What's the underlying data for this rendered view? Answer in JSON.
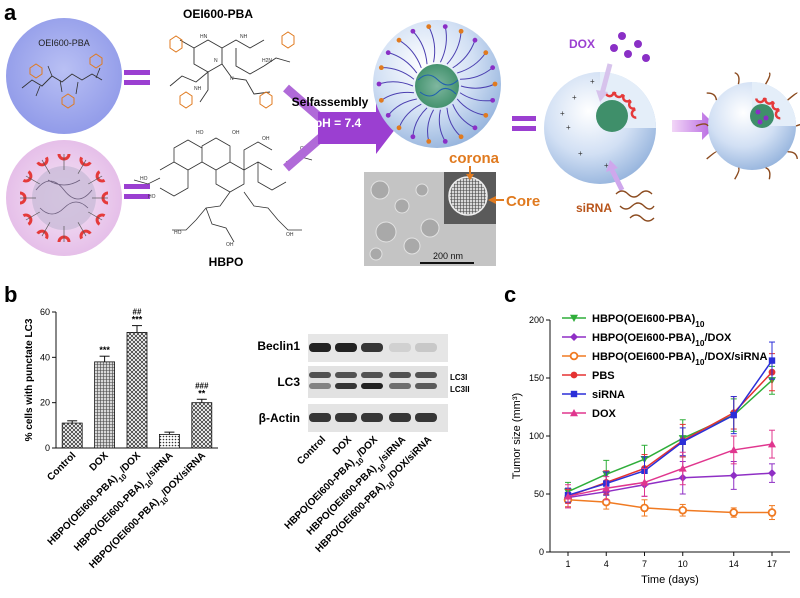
{
  "panel_a": {
    "label": "a",
    "title": "OEI600-PBA",
    "circle_label": "OEI600-PBA",
    "hbpo_label": "HBPO",
    "selfassembly": "Selfassembly",
    "ph": "pH = 7.4",
    "corona": "corona",
    "core": "Core",
    "scale": "200 nm",
    "dox": "DOX",
    "sirna": "siRNA",
    "colors": {
      "purple": "#9b3fd1",
      "orange": "#e07a1f",
      "circle_blue": "#9ea8ee",
      "nano_blue": "#bcd0ee"
    }
  },
  "panel_b": {
    "label": "b",
    "ylabel": "% cells with punctate LC3",
    "blot_rows": [
      "Beclin1",
      "LC3",
      "β-Actin"
    ],
    "lc3_bands": [
      "LC3I",
      "LC3II"
    ],
    "blot_lanes": [
      "Control",
      "DOX",
      "HBPO(OEI600-PBA)10/DOX",
      "HBPO(OEI600-PBA)10/siRNA",
      "HBPO(OEI600-PBA)10/DOX/siRNA"
    ]
  },
  "panel_c": {
    "label": "c"
  },
  "chart_data": [
    {
      "type": "bar",
      "title": "",
      "xlabel": "",
      "ylabel": "% cells with punctate LC3",
      "categories": [
        "Control",
        "DOX",
        "HBPO(OEI600-PBA)10/DOX",
        "HBPO(OEI600-PBA)10/siRNA",
        "HBPO(OEI600-PBA)10/DOX/siRNA"
      ],
      "values": [
        11,
        38,
        51,
        6,
        20
      ],
      "errors": [
        1.0,
        2.5,
        3.0,
        1.0,
        1.5
      ],
      "annotations": [
        [
          "",
          ""
        ],
        [
          "***",
          ""
        ],
        [
          "***",
          "##"
        ],
        [
          "",
          ""
        ],
        [
          "**",
          "###"
        ]
      ],
      "ylim": [
        0,
        60
      ],
      "yticks": [
        0,
        20,
        40,
        60
      ]
    },
    {
      "type": "line",
      "title": "",
      "xlabel": "Time (days)",
      "ylabel": "Tumor size (mm³)",
      "x": [
        1,
        4,
        7,
        10,
        14,
        17
      ],
      "xlim": [
        1,
        17
      ],
      "ylim": [
        0,
        200
      ],
      "yticks": [
        0,
        50,
        100,
        150,
        200
      ],
      "legend": "top-left",
      "series": [
        {
          "name": "HBPO(OEI600-PBA)10",
          "color": "#2fae3a",
          "marker": "triangle-down",
          "values": [
            52,
            67,
            80,
            98,
            118,
            148
          ],
          "errors": [
            8,
            12,
            12,
            16,
            14,
            12
          ]
        },
        {
          "name": "HBPO(OEI600-PBA)10/DOX",
          "color": "#8f2fc5",
          "marker": "diamond",
          "values": [
            47,
            52,
            58,
            64,
            66,
            68
          ],
          "errors": [
            8,
            8,
            10,
            14,
            12,
            8
          ]
        },
        {
          "name": "HBPO(OEI600-PBA)10/DOX/siRNA",
          "color": "#f07a22",
          "marker": "circle-open",
          "values": [
            45,
            43,
            38,
            36,
            34,
            34
          ],
          "errors": [
            6,
            6,
            7,
            5,
            4,
            6
          ]
        },
        {
          "name": "PBS",
          "color": "#e53232",
          "marker": "circle",
          "values": [
            48,
            60,
            72,
            96,
            120,
            155
          ],
          "errors": [
            6,
            10,
            12,
            14,
            14,
            16
          ]
        },
        {
          "name": "siRNA",
          "color": "#2b2fd8",
          "marker": "square",
          "values": [
            49,
            59,
            70,
            95,
            118,
            165
          ],
          "errors": [
            6,
            10,
            12,
            12,
            16,
            16
          ]
        },
        {
          "name": "DOX",
          "color": "#e0368e",
          "marker": "triangle-up",
          "values": [
            48,
            55,
            60,
            72,
            88,
            93
          ],
          "errors": [
            10,
            10,
            12,
            14,
            12,
            12
          ]
        }
      ]
    }
  ]
}
